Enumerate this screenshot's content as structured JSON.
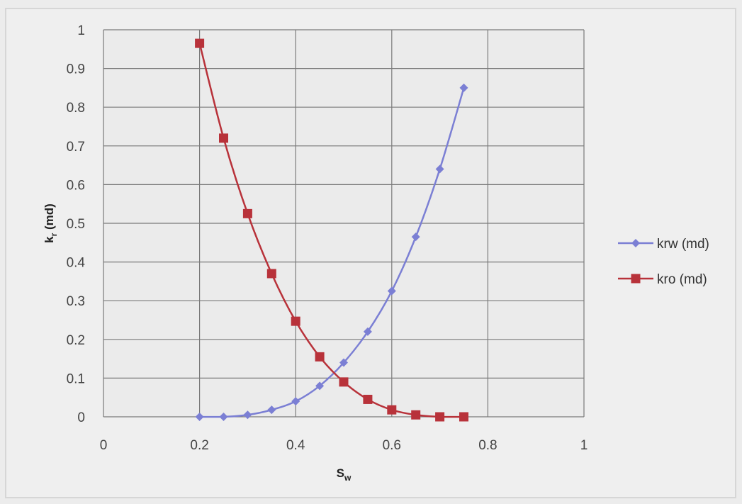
{
  "chart_data": {
    "type": "scatter",
    "title": "",
    "xlabel": "S",
    "xlabel_sub": "w",
    "ylabel": "k",
    "ylabel_sub": "r",
    "ylabel_suffix": " (md)",
    "xlim": [
      0,
      1
    ],
    "ylim": [
      0,
      1
    ],
    "x_ticks": [
      0,
      0.2,
      0.4,
      0.6,
      0.8,
      1
    ],
    "y_ticks": [
      0,
      0.1,
      0.2,
      0.3,
      0.4,
      0.5,
      0.6,
      0.7,
      0.8,
      0.9,
      1
    ],
    "x_tick_labels": [
      "0",
      "0.2",
      "0.4",
      "0.6",
      "0.8",
      "1"
    ],
    "y_tick_labels": [
      "0",
      "0.1",
      "0.2",
      "0.3",
      "0.4",
      "0.5",
      "0.6",
      "0.7",
      "0.8",
      "0.9",
      "1"
    ],
    "grid": true,
    "legend_position": "right",
    "series": [
      {
        "name": "krw (md)",
        "color": "#7b7fd4",
        "marker": "diamond",
        "x": [
          0.2,
          0.25,
          0.3,
          0.35,
          0.4,
          0.45,
          0.5,
          0.55,
          0.6,
          0.65,
          0.7,
          0.75
        ],
        "y": [
          0.0,
          0.0,
          0.005,
          0.018,
          0.04,
          0.08,
          0.14,
          0.22,
          0.325,
          0.465,
          0.64,
          0.85
        ]
      },
      {
        "name": "kro (md)",
        "color": "#b8323a",
        "marker": "square",
        "x": [
          0.2,
          0.25,
          0.3,
          0.35,
          0.4,
          0.45,
          0.5,
          0.55,
          0.6,
          0.65,
          0.7,
          0.75
        ],
        "y": [
          0.965,
          0.72,
          0.525,
          0.37,
          0.247,
          0.155,
          0.09,
          0.045,
          0.018,
          0.005,
          0.0,
          0.0
        ]
      }
    ]
  }
}
